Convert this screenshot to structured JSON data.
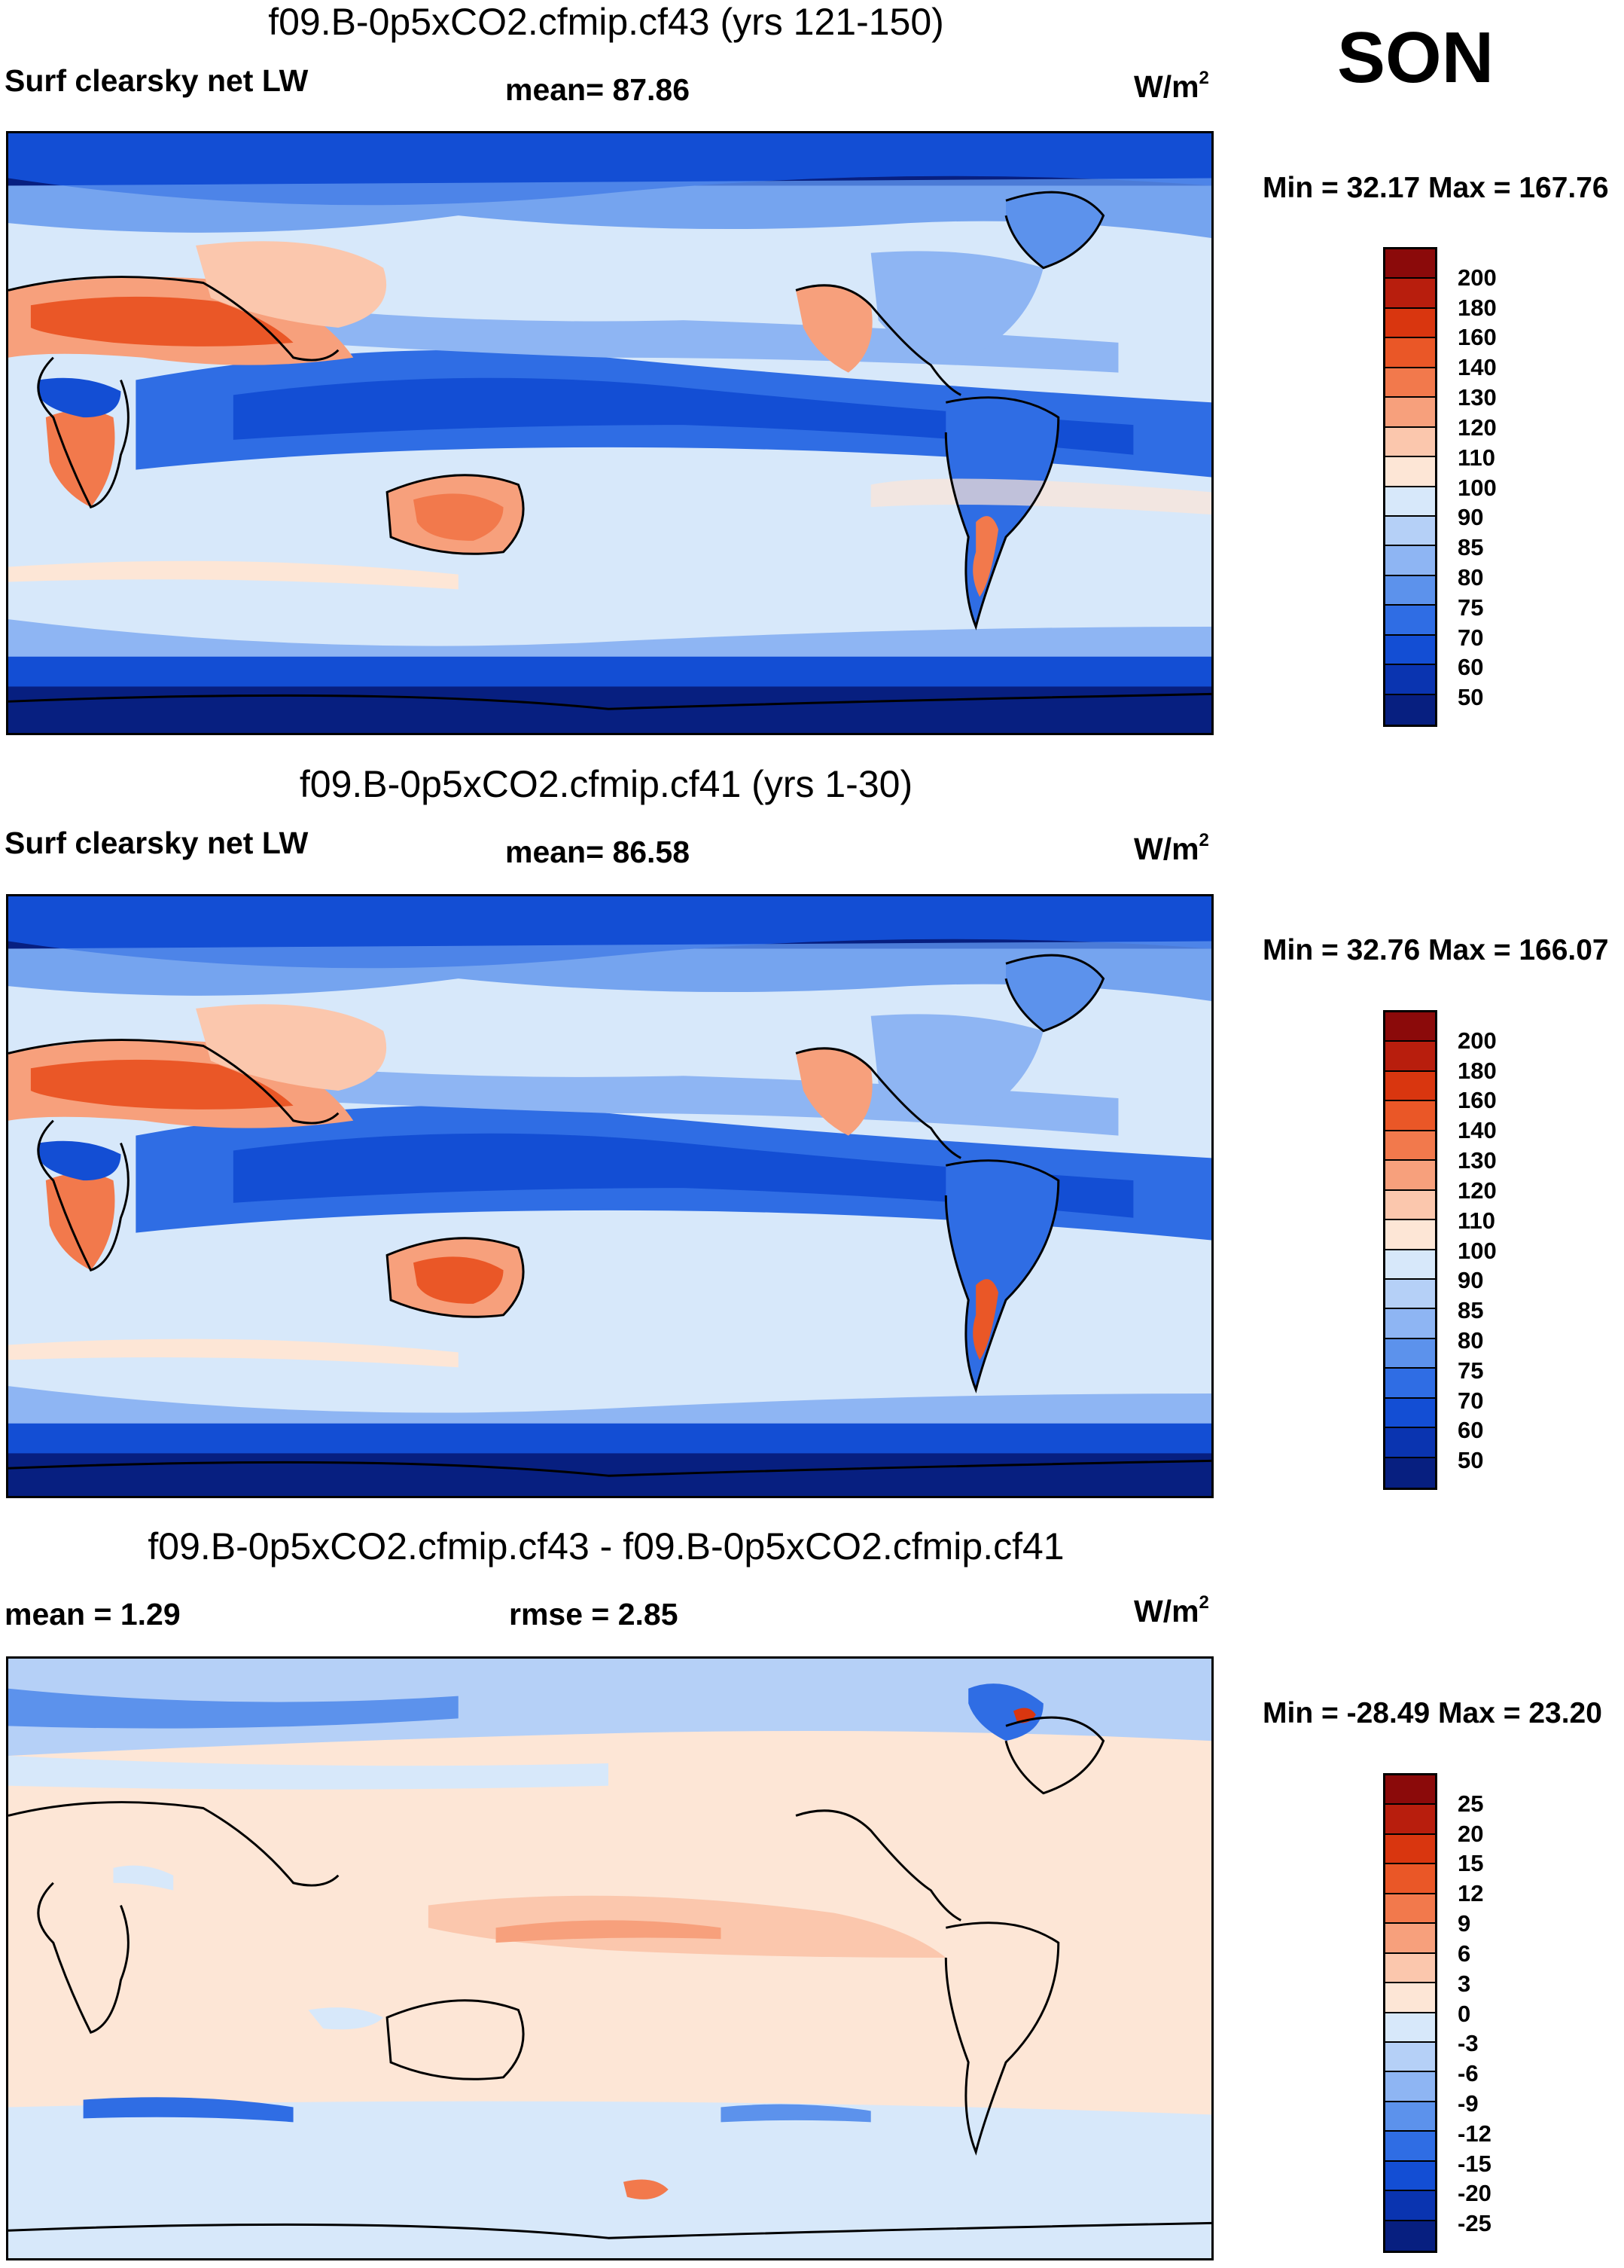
{
  "season": "SON",
  "panels": [
    {
      "title": "f09.B-0p5xCO2.cfmip.cf43 (yrs 121-150)",
      "left_label": "Surf clearsky net LW",
      "mid_label": "mean=  87.86",
      "units": "W/m",
      "units_sup": "2",
      "minmax": "Min =  32.17 Max = 167.76",
      "legend": {
        "labels": [
          "200",
          "180",
          "160",
          "140",
          "130",
          "120",
          "110",
          "100",
          "90",
          "85",
          "80",
          "75",
          "70",
          "60",
          "50"
        ],
        "colors": [
          "#8b0a0a",
          "#b81e0d",
          "#d9360f",
          "#ea5727",
          "#f2794c",
          "#f7a07c",
          "#fbc7ad",
          "#fde6d6",
          "#d7e8fa",
          "#b5d0f7",
          "#8eb5f3",
          "#5c92ec",
          "#2f6de4",
          "#134ed4",
          "#0a34b0",
          "#071f80"
        ]
      }
    },
    {
      "title": "f09.B-0p5xCO2.cfmip.cf41 (yrs 1-30)",
      "left_label": "Surf clearsky net LW",
      "mid_label": "mean=  86.58",
      "units": "W/m",
      "units_sup": "2",
      "minmax": "Min =  32.76 Max = 166.07",
      "legend": {
        "labels": [
          "200",
          "180",
          "160",
          "140",
          "130",
          "120",
          "110",
          "100",
          "90",
          "85",
          "80",
          "75",
          "70",
          "60",
          "50"
        ],
        "colors": [
          "#8b0a0a",
          "#b81e0d",
          "#d9360f",
          "#ea5727",
          "#f2794c",
          "#f7a07c",
          "#fbc7ad",
          "#fde6d6",
          "#d7e8fa",
          "#b5d0f7",
          "#8eb5f3",
          "#5c92ec",
          "#2f6de4",
          "#134ed4",
          "#0a34b0",
          "#071f80"
        ]
      }
    },
    {
      "title": "f09.B-0p5xCO2.cfmip.cf43 - f09.B-0p5xCO2.cfmip.cf41",
      "left_label": "mean =    1.29",
      "mid_label": "rmse =    2.85",
      "units": "W/m",
      "units_sup": "2",
      "minmax": "Min = -28.49 Max =  23.20",
      "legend": {
        "labels": [
          "25",
          "20",
          "15",
          "12",
          "9",
          "6",
          "3",
          "0",
          "-3",
          "-6",
          "-9",
          "-12",
          "-15",
          "-20",
          "-25"
        ],
        "colors": [
          "#8b0a0a",
          "#b81e0d",
          "#d9360f",
          "#ea5727",
          "#f2794c",
          "#f7a07c",
          "#fbc7ad",
          "#fde6d6",
          "#d7e8fa",
          "#b5d0f7",
          "#8eb5f3",
          "#5c92ec",
          "#2f6de4",
          "#134ed4",
          "#0a34b0",
          "#071f80"
        ]
      }
    }
  ]
}
